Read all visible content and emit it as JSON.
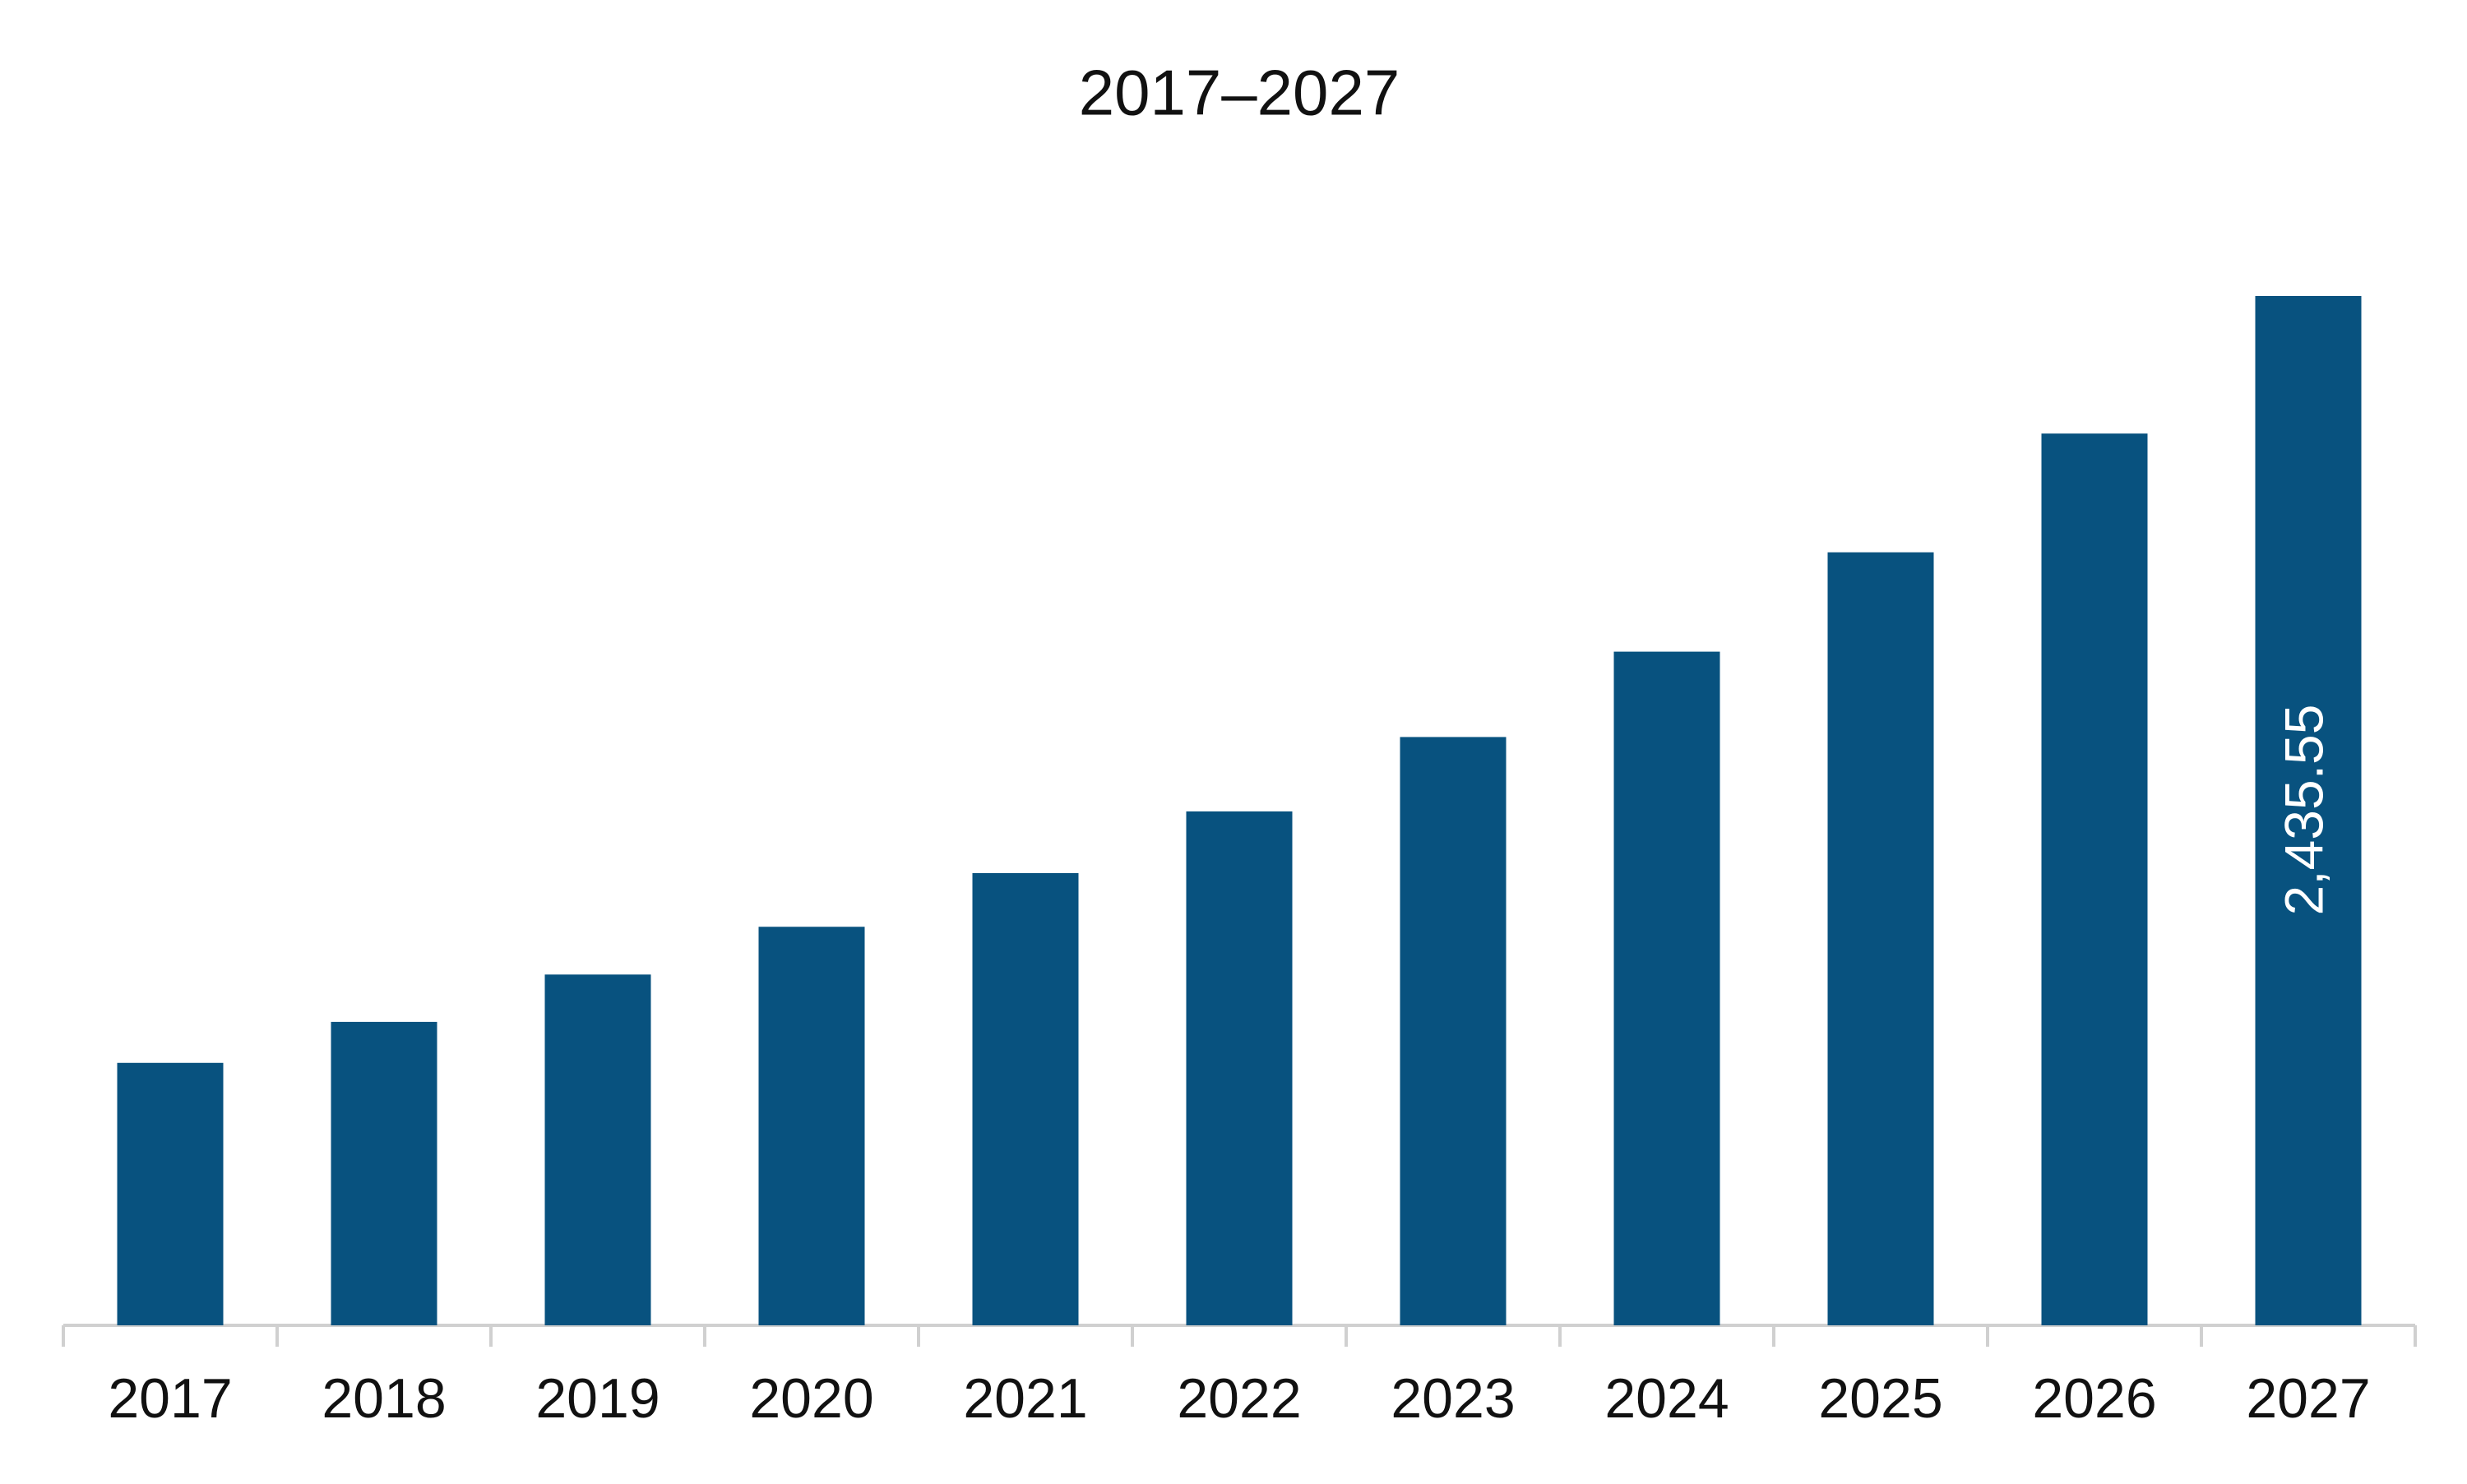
{
  "chart_data": {
    "type": "bar",
    "title": "2017–2027",
    "categories": [
      "2017",
      "2018",
      "2019",
      "2020",
      "2021",
      "2022",
      "2023",
      "2024",
      "2025",
      "2026",
      "2027"
    ],
    "values": [
      621,
      718,
      830,
      943,
      1070,
      1216,
      1392,
      1594,
      1829,
      2110,
      2435.55
    ],
    "value_labels": [
      null,
      null,
      null,
      null,
      null,
      null,
      null,
      null,
      null,
      null,
      "2,435.55"
    ],
    "color": "#08527f"
  }
}
